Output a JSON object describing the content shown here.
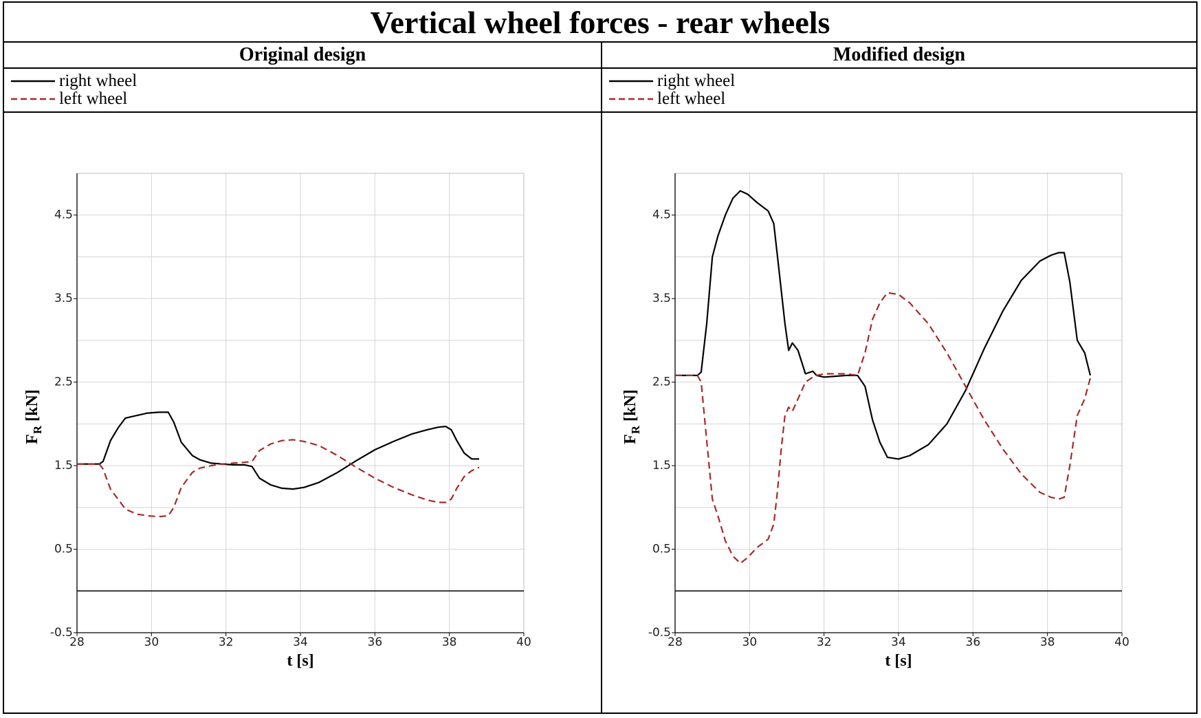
{
  "title": "Vertical wheel forces - rear wheels",
  "legend": [
    {
      "label": "right wheel",
      "color": "#000000",
      "dash": "solid"
    },
    {
      "label": "left wheel",
      "color": "#a52a2a",
      "dash": "dashed"
    }
  ],
  "chart_data": [
    {
      "type": "line",
      "title": "Original design",
      "xlabel": "t [s]",
      "ylabel_main": "F",
      "ylabel_sub": "R",
      "ylabel_unit": " [kN]",
      "xlim": [
        28,
        40
      ],
      "ylim": [
        -0.5,
        5.0
      ],
      "xticks": [
        28,
        30,
        32,
        34,
        36,
        38,
        40
      ],
      "xtick_labels": [
        "28",
        "30",
        "32",
        "34",
        "36",
        "38",
        "40"
      ],
      "yticks": [
        -0.5,
        0.5,
        1.5,
        2.5,
        3.5,
        4.5
      ],
      "ytick_labels": [
        "-0.5",
        "0.5",
        "1.5",
        "2.5",
        "3.5",
        "4.5"
      ],
      "grid": true,
      "series": [
        {
          "name": "right wheel",
          "color": "#000000",
          "dash": "solid",
          "x": [
            28,
            28.6,
            28.7,
            28.9,
            29.1,
            29.3,
            29.6,
            29.9,
            30.2,
            30.45,
            30.6,
            30.8,
            31.1,
            31.3,
            31.6,
            31.9,
            32.2,
            32.5,
            32.7,
            32.9,
            33.2,
            33.5,
            33.8,
            34.1,
            34.5,
            35.0,
            35.5,
            36.0,
            36.5,
            37.0,
            37.4,
            37.7,
            37.9,
            38.05,
            38.2,
            38.4,
            38.6,
            38.8
          ],
          "y": [
            1.52,
            1.52,
            1.55,
            1.8,
            1.95,
            2.07,
            2.1,
            2.13,
            2.14,
            2.14,
            2.02,
            1.78,
            1.62,
            1.57,
            1.53,
            1.52,
            1.51,
            1.51,
            1.49,
            1.35,
            1.27,
            1.23,
            1.22,
            1.24,
            1.3,
            1.42,
            1.56,
            1.69,
            1.79,
            1.88,
            1.93,
            1.96,
            1.97,
            1.93,
            1.8,
            1.65,
            1.58,
            1.58
          ]
        },
        {
          "name": "left wheel",
          "color": "#a52a2a",
          "dash": "dashed",
          "x": [
            28,
            28.6,
            28.7,
            28.9,
            29.1,
            29.3,
            29.6,
            29.9,
            30.2,
            30.45,
            30.6,
            30.8,
            31.1,
            31.3,
            31.6,
            31.9,
            32.2,
            32.5,
            32.7,
            32.9,
            33.2,
            33.5,
            33.8,
            34.1,
            34.5,
            35.0,
            35.5,
            36.0,
            36.5,
            37.0,
            37.4,
            37.7,
            37.9,
            38.05,
            38.2,
            38.4,
            38.6,
            38.8
          ],
          "y": [
            1.52,
            1.52,
            1.46,
            1.22,
            1.1,
            0.98,
            0.92,
            0.9,
            0.89,
            0.9,
            1.0,
            1.24,
            1.42,
            1.47,
            1.5,
            1.52,
            1.53,
            1.54,
            1.55,
            1.68,
            1.76,
            1.8,
            1.81,
            1.79,
            1.74,
            1.62,
            1.48,
            1.35,
            1.24,
            1.15,
            1.09,
            1.06,
            1.06,
            1.1,
            1.23,
            1.37,
            1.44,
            1.48
          ]
        }
      ]
    },
    {
      "type": "line",
      "title": "Modified design",
      "xlabel": "t [s]",
      "ylabel_main": "F",
      "ylabel_sub": "R",
      "ylabel_unit": " [kN]",
      "xlim": [
        28,
        40
      ],
      "ylim": [
        -0.5,
        5.0
      ],
      "xticks": [
        28,
        30,
        32,
        34,
        36,
        38,
        40
      ],
      "xtick_labels": [
        "28",
        "30",
        "32",
        "34",
        "36",
        "38",
        "40"
      ],
      "yticks": [
        -0.5,
        0.5,
        1.5,
        2.5,
        3.5,
        4.5
      ],
      "ytick_labels": [
        "-0.5",
        "0.5",
        "1.5",
        "2.5",
        "3.5",
        "4.5"
      ],
      "grid": true,
      "series": [
        {
          "name": "right wheel",
          "color": "#000000",
          "dash": "solid",
          "x": [
            28,
            28.6,
            28.7,
            28.85,
            29.0,
            29.15,
            29.35,
            29.55,
            29.75,
            29.95,
            30.2,
            30.5,
            30.65,
            30.75,
            30.85,
            30.95,
            31.05,
            31.15,
            31.3,
            31.5,
            31.7,
            31.8,
            32.0,
            32.3,
            32.6,
            32.9,
            33.1,
            33.3,
            33.5,
            33.7,
            34.0,
            34.3,
            34.8,
            35.3,
            35.8,
            36.3,
            36.8,
            37.3,
            37.8,
            38.1,
            38.3,
            38.45,
            38.6,
            38.8,
            39.0,
            39.15
          ],
          "y": [
            2.58,
            2.58,
            2.62,
            3.2,
            4.0,
            4.25,
            4.5,
            4.7,
            4.79,
            4.75,
            4.65,
            4.55,
            4.4,
            4.0,
            3.6,
            3.2,
            2.88,
            2.97,
            2.88,
            2.6,
            2.63,
            2.58,
            2.56,
            2.57,
            2.58,
            2.58,
            2.45,
            2.05,
            1.78,
            1.6,
            1.58,
            1.62,
            1.75,
            2.0,
            2.4,
            2.9,
            3.35,
            3.72,
            3.95,
            4.02,
            4.05,
            4.05,
            3.7,
            3.0,
            2.85,
            2.58
          ]
        },
        {
          "name": "left wheel",
          "color": "#a52a2a",
          "dash": "dashed",
          "x": [
            28,
            28.6,
            28.7,
            28.85,
            29.0,
            29.15,
            29.35,
            29.55,
            29.75,
            29.95,
            30.2,
            30.5,
            30.65,
            30.75,
            30.85,
            30.95,
            31.05,
            31.15,
            31.3,
            31.5,
            31.7,
            31.8,
            32.0,
            32.3,
            32.6,
            32.9,
            33.1,
            33.3,
            33.5,
            33.7,
            34.0,
            34.3,
            34.8,
            35.3,
            35.8,
            36.3,
            36.8,
            37.3,
            37.8,
            38.1,
            38.3,
            38.45,
            38.6,
            38.8,
            39.0,
            39.15
          ],
          "y": [
            2.58,
            2.58,
            2.5,
            1.8,
            1.1,
            0.9,
            0.6,
            0.42,
            0.33,
            0.4,
            0.52,
            0.62,
            0.8,
            1.2,
            1.7,
            2.1,
            2.2,
            2.15,
            2.3,
            2.5,
            2.56,
            2.58,
            2.6,
            2.6,
            2.6,
            2.58,
            2.85,
            3.25,
            3.45,
            3.57,
            3.55,
            3.45,
            3.2,
            2.85,
            2.45,
            2.05,
            1.7,
            1.4,
            1.18,
            1.12,
            1.1,
            1.12,
            1.5,
            2.1,
            2.3,
            2.55
          ]
        }
      ]
    }
  ]
}
